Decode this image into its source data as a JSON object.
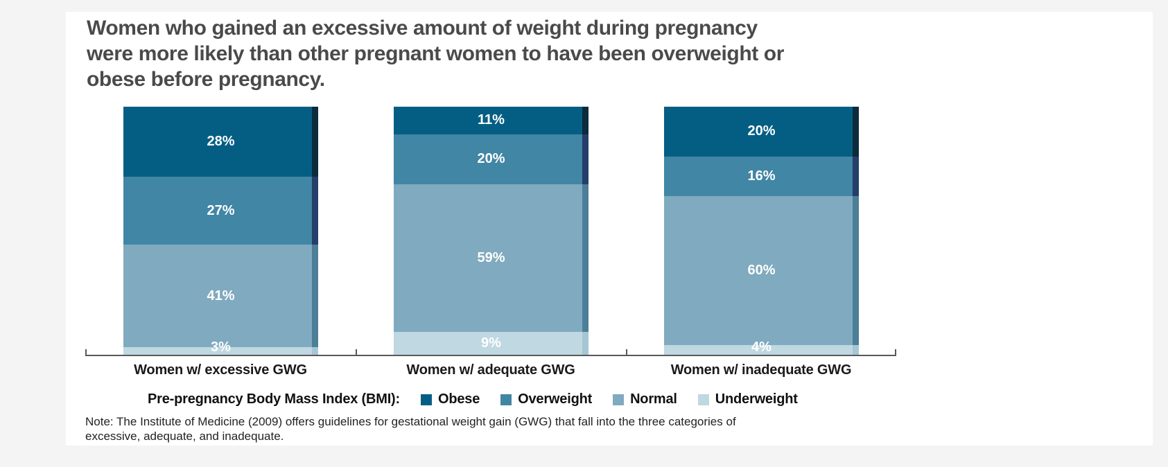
{
  "title_lines": [
    "Women who gained an excessive amount of weight during pregnancy",
    "were more likely than other pregnant women to have been overweight or",
    "obese before pregnancy."
  ],
  "chart_data": {
    "type": "bar",
    "stacked": true,
    "orientation": "vertical",
    "value_unit": "%",
    "gridlines": false,
    "y_axis_shown": false,
    "categories": [
      "Women w/ excessive GWG",
      "Women w/ adequate GWG",
      "Women w/ inadequate GWG"
    ],
    "stack_order_top_to_bottom": [
      "Obese",
      "Overweight",
      "Normal",
      "Underweight"
    ],
    "series": [
      {
        "name": "Obese",
        "color": "#045e84",
        "edge_color": "#0c2b3d",
        "values": [
          28,
          11,
          20
        ]
      },
      {
        "name": "Overweight",
        "color": "#4186a4",
        "edge_color": "#253e6a",
        "values": [
          27,
          20,
          16
        ]
      },
      {
        "name": "Normal",
        "color": "#80aabf",
        "edge_color": "#4c7f97",
        "values": [
          41,
          59,
          60
        ]
      },
      {
        "name": "Underweight",
        "color": "#bfd8e1",
        "edge_color": "#a6c6d3",
        "values": [
          3,
          9,
          4
        ]
      }
    ],
    "value_label_format": "{value}%",
    "legend": {
      "position": "bottom",
      "title": "Pre-pregnancy Body Mass Index (BMI):",
      "items": [
        "Obese",
        "Overweight",
        "Normal",
        "Underweight"
      ]
    }
  },
  "note": "Note: The Institute of Medicine (2009) offers guidelines for gestational weight gain (GWG) that fall into the three categories of excessive, adequate, and inadequate.",
  "colors": {
    "page_background": "#f4f4f5",
    "panel_background": "#ffffff",
    "title_text": "#4a4a4a",
    "axis_line": "#58585a",
    "bar_label_text": "#ffffff"
  }
}
